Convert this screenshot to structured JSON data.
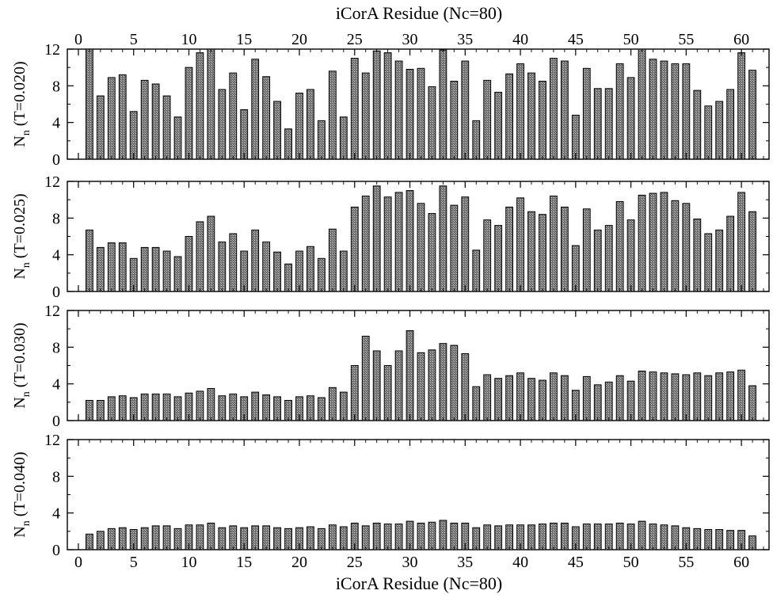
{
  "chart_data": {
    "type": "bar",
    "top_xlabel": "iCorA Residue (Nc=80)",
    "xlabel": "iCorA Residue (Nc=80)",
    "x_ticks": [
      "0",
      "5",
      "10",
      "15",
      "20",
      "25",
      "30",
      "35",
      "40",
      "45",
      "50",
      "55",
      "60"
    ],
    "y_ticks": [
      "0",
      "4",
      "8",
      "12"
    ],
    "xlim": [
      -1,
      62.5
    ],
    "ylim": [
      0,
      12
    ],
    "panels": [
      {
        "ylabel_main": "N",
        "ylabel_sub": "n",
        "ylabel_rest": " (T=0.020)",
        "x": [
          1,
          2,
          3,
          4,
          5,
          6,
          7,
          8,
          9,
          10,
          11,
          12,
          13,
          14,
          15,
          16,
          17,
          18,
          19,
          20,
          21,
          22,
          23,
          24,
          25,
          26,
          27,
          28,
          29,
          30,
          31,
          32,
          33,
          34,
          35,
          36,
          37,
          38,
          39,
          40,
          41,
          42,
          43,
          44,
          45,
          46,
          47,
          48,
          49,
          50,
          51,
          52,
          53,
          54,
          55,
          56,
          57,
          58,
          59,
          60,
          61
        ],
        "values": [
          12,
          6.9,
          8.9,
          9.2,
          5.2,
          8.6,
          8.2,
          6.9,
          4.6,
          10.0,
          11.6,
          12.0,
          7.6,
          9.4,
          5.4,
          10.9,
          9.0,
          6.3,
          3.3,
          7.2,
          7.6,
          4.2,
          9.6,
          4.6,
          11.0,
          9.4,
          11.8,
          11.6,
          10.7,
          9.8,
          9.9,
          7.9,
          11.9,
          8.5,
          10.7,
          4.2,
          8.6,
          7.3,
          9.3,
          10.4,
          9.4,
          8.5,
          11.0,
          10.7,
          4.8,
          9.9,
          7.7,
          7.7,
          10.4,
          8.9,
          12.0,
          10.9,
          10.7,
          10.4,
          10.4,
          7.5,
          5.8,
          6.3,
          7.6,
          11.6,
          9.7
        ]
      },
      {
        "ylabel_main": "N",
        "ylabel_sub": "n",
        "ylabel_rest": " (T=0.025)",
        "x": [
          1,
          2,
          3,
          4,
          5,
          6,
          7,
          8,
          9,
          10,
          11,
          12,
          13,
          14,
          15,
          16,
          17,
          18,
          19,
          20,
          21,
          22,
          23,
          24,
          25,
          26,
          27,
          28,
          29,
          30,
          31,
          32,
          33,
          34,
          35,
          36,
          37,
          38,
          39,
          40,
          41,
          42,
          43,
          44,
          45,
          46,
          47,
          48,
          49,
          50,
          51,
          52,
          53,
          54,
          55,
          56,
          57,
          58,
          59,
          60,
          61
        ],
        "values": [
          6.7,
          4.8,
          5.3,
          5.3,
          3.6,
          4.8,
          4.8,
          4.4,
          3.8,
          6.0,
          7.6,
          8.2,
          5.4,
          6.3,
          4.4,
          6.7,
          5.4,
          4.3,
          3.0,
          4.4,
          4.9,
          3.6,
          6.8,
          4.4,
          9.2,
          10.4,
          11.5,
          10.3,
          10.8,
          11.0,
          9.6,
          8.5,
          11.5,
          9.4,
          10.3,
          4.5,
          7.8,
          7.2,
          9.2,
          10.2,
          8.7,
          8.4,
          10.4,
          9.2,
          5.0,
          9.0,
          6.7,
          7.2,
          9.8,
          7.8,
          10.5,
          10.7,
          10.8,
          9.9,
          9.6,
          7.9,
          6.3,
          6.7,
          8.2,
          10.8,
          8.7
        ]
      },
      {
        "ylabel_main": "N",
        "ylabel_sub": "n",
        "ylabel_rest": " (T=0.030)",
        "x": [
          1,
          2,
          3,
          4,
          5,
          6,
          7,
          8,
          9,
          10,
          11,
          12,
          13,
          14,
          15,
          16,
          17,
          18,
          19,
          20,
          21,
          22,
          23,
          24,
          25,
          26,
          27,
          28,
          29,
          30,
          31,
          32,
          33,
          34,
          35,
          36,
          37,
          38,
          39,
          40,
          41,
          42,
          43,
          44,
          45,
          46,
          47,
          48,
          49,
          50,
          51,
          52,
          53,
          54,
          55,
          56,
          57,
          58,
          59,
          60,
          61
        ],
        "values": [
          2.2,
          2.2,
          2.6,
          2.7,
          2.5,
          2.9,
          2.9,
          2.9,
          2.6,
          3.0,
          3.2,
          3.5,
          2.7,
          2.9,
          2.6,
          3.1,
          2.8,
          2.6,
          2.2,
          2.6,
          2.7,
          2.5,
          3.6,
          3.1,
          6.0,
          9.2,
          7.6,
          6.0,
          7.6,
          9.8,
          7.4,
          7.7,
          8.4,
          8.2,
          7.3,
          3.7,
          5.0,
          4.6,
          4.9,
          5.2,
          4.6,
          4.4,
          5.2,
          4.9,
          3.3,
          4.8,
          3.9,
          4.2,
          4.9,
          4.3,
          5.4,
          5.3,
          5.2,
          5.1,
          5.0,
          5.2,
          4.9,
          5.2,
          5.3,
          5.5,
          3.8
        ]
      },
      {
        "ylabel_main": "N",
        "ylabel_sub": "n",
        "ylabel_rest": " (T=0.040)",
        "x": [
          1,
          2,
          3,
          4,
          5,
          6,
          7,
          8,
          9,
          10,
          11,
          12,
          13,
          14,
          15,
          16,
          17,
          18,
          19,
          20,
          21,
          22,
          23,
          24,
          25,
          26,
          27,
          28,
          29,
          30,
          31,
          32,
          33,
          34,
          35,
          36,
          37,
          38,
          39,
          40,
          41,
          42,
          43,
          44,
          45,
          46,
          47,
          48,
          49,
          50,
          51,
          52,
          53,
          54,
          55,
          56,
          57,
          58,
          59,
          60,
          61
        ],
        "values": [
          1.7,
          2.0,
          2.3,
          2.4,
          2.2,
          2.4,
          2.6,
          2.6,
          2.3,
          2.7,
          2.7,
          2.9,
          2.4,
          2.6,
          2.4,
          2.6,
          2.6,
          2.4,
          2.3,
          2.4,
          2.5,
          2.3,
          2.7,
          2.5,
          2.9,
          2.6,
          2.9,
          2.8,
          2.8,
          3.1,
          2.9,
          3.0,
          3.2,
          2.9,
          2.9,
          2.4,
          2.7,
          2.6,
          2.7,
          2.7,
          2.7,
          2.8,
          2.9,
          2.9,
          2.5,
          2.8,
          2.8,
          2.8,
          2.9,
          2.8,
          3.1,
          2.8,
          2.7,
          2.6,
          2.4,
          2.3,
          2.2,
          2.2,
          2.1,
          2.1,
          1.5
        ]
      }
    ],
    "colors": {
      "bar_fill": "#8a8a8a",
      "bar_stroke": "#000000",
      "background": "#ffffff"
    }
  }
}
